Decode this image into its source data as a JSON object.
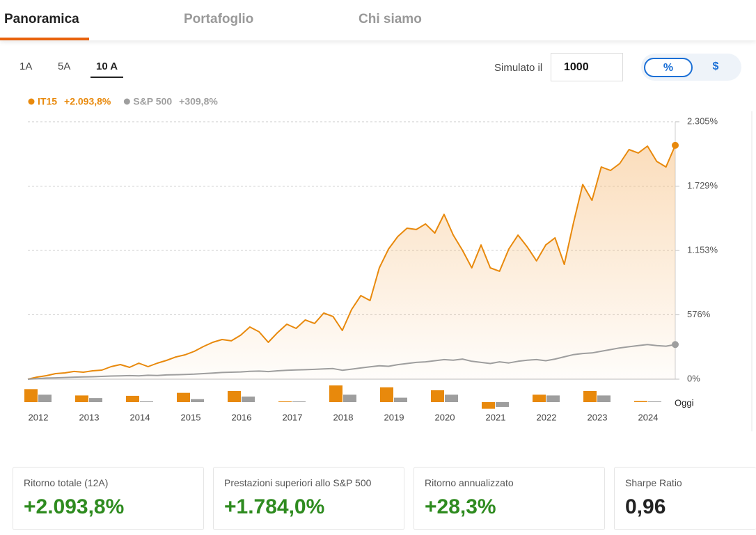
{
  "tabs": [
    "Panoramica",
    "Portafoglio",
    "Chi siamo"
  ],
  "ranges": [
    "1A",
    "5A",
    "10 A"
  ],
  "simulator": {
    "label": "Simulato il",
    "value": "1000"
  },
  "toggle": [
    "%",
    "$"
  ],
  "chart_data": [
    {
      "type": "line",
      "ylim": [
        0,
        2305
      ],
      "yticks": [
        {
          "value": 0,
          "label": "0%"
        },
        {
          "value": 576,
          "label": "576%"
        },
        {
          "value": 1153,
          "label": "1.153%"
        },
        {
          "value": 1729,
          "label": "1.729%"
        },
        {
          "value": 2305,
          "label": "2.305%"
        }
      ],
      "grid": true,
      "series": [
        {
          "name": "IT15",
          "change": "+2.093,8%",
          "color": "#e8890c",
          "values": [
            0,
            19,
            31,
            50,
            56,
            69,
            62,
            75,
            81,
            112,
            131,
            106,
            143,
            112,
            143,
            168,
            199,
            218,
            249,
            293,
            330,
            355,
            343,
            393,
            467,
            424,
            330,
            417,
            492,
            455,
            530,
            499,
            592,
            561,
            436,
            623,
            748,
            704,
            997,
            1165,
            1277,
            1352,
            1340,
            1390,
            1308,
            1476,
            1290,
            1153,
            997,
            1202,
            997,
            966,
            1165,
            1290,
            1184,
            1059,
            1202,
            1265,
            1028,
            1402,
            1744,
            1601,
            1900,
            1869,
            1931,
            2056,
            2025,
            2087,
            1950,
            1900,
            2094
          ]
        },
        {
          "name": "S&P 500",
          "change": "+309,8%",
          "color": "#9e9e9e",
          "values": [
            0,
            5,
            10,
            12,
            15,
            18,
            20,
            22,
            25,
            28,
            30,
            32,
            30,
            35,
            33,
            38,
            40,
            42,
            45,
            50,
            55,
            60,
            62,
            65,
            70,
            72,
            68,
            75,
            80,
            82,
            85,
            88,
            92,
            95,
            80,
            90,
            100,
            110,
            120,
            115,
            130,
            140,
            150,
            155,
            165,
            175,
            170,
            180,
            160,
            150,
            140,
            155,
            145,
            160,
            170,
            175,
            165,
            180,
            200,
            220,
            230,
            235,
            250,
            265,
            280,
            290,
            300,
            310,
            300,
            295,
            310
          ]
        }
      ]
    },
    {
      "type": "bar",
      "categories": [
        "2012",
        "2013",
        "2014",
        "2015",
        "2016",
        "2017",
        "2018",
        "2019",
        "2020",
        "2021",
        "2022",
        "2023",
        "2024"
      ],
      "end_label": "Oggi",
      "series": [
        {
          "name": "IT15",
          "color": "#e8890c",
          "values": [
            35,
            18,
            17,
            25,
            30,
            2,
            45,
            40,
            32,
            -18,
            20,
            30,
            3
          ]
        },
        {
          "name": "S&P 500",
          "color": "#9e9e9e",
          "values": [
            20,
            11,
            2,
            8,
            15,
            1.5,
            20,
            12,
            20,
            -13,
            18,
            18,
            1
          ]
        }
      ]
    }
  ],
  "stats": [
    {
      "label": "Ritorno totale (12A)",
      "value": "+2.093,8%"
    },
    {
      "label": "Prestazioni superiori allo S&P 500",
      "value": "+1.784,0%"
    },
    {
      "label": "Ritorno annualizzato",
      "value": "+28,3%"
    },
    {
      "label": "Sharpe Ratio",
      "value": "0,96"
    }
  ]
}
